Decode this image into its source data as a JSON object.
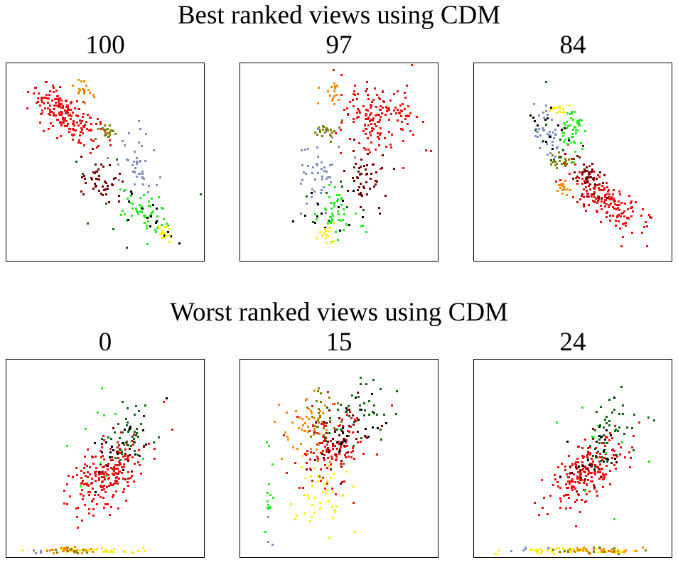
{
  "top_title": "Best ranked views using CDM",
  "bottom_title": "Worst ranked views using CDM",
  "palette": {
    "red": "#ee1111",
    "orange": "#ff8800",
    "olive": "#808000",
    "periwinkle": "#7f8fc0",
    "maroon": "#770000",
    "lime": "#22ee22",
    "darkgreen": "#116611",
    "black": "#000000",
    "yellow": "#ffee00"
  },
  "chart_data": [
    {
      "type": "scatter",
      "score": "100",
      "xlim": [
        0,
        1
      ],
      "ylim": [
        0,
        1
      ],
      "grid": false,
      "axes_ticks": false,
      "clusters": [
        {
          "color": "red",
          "n": 190,
          "cx": 0.28,
          "cy": 0.76,
          "sx": 0.09,
          "sy": 0.07,
          "rho": -0.6
        },
        {
          "color": "orange",
          "n": 18,
          "cx": 0.38,
          "cy": 0.88,
          "sx": 0.025,
          "sy": 0.025,
          "rho": -0.2
        },
        {
          "color": "olive",
          "n": 22,
          "cx": 0.5,
          "cy": 0.67,
          "sx": 0.022,
          "sy": 0.025,
          "rho": 0
        },
        {
          "color": "periwinkle",
          "n": 42,
          "cx": 0.66,
          "cy": 0.47,
          "sx": 0.05,
          "sy": 0.1,
          "rho": -0.2
        },
        {
          "color": "maroon",
          "n": 48,
          "cx": 0.47,
          "cy": 0.4,
          "sx": 0.06,
          "sy": 0.06,
          "rho": -0.5
        },
        {
          "color": "lime",
          "n": 52,
          "cx": 0.7,
          "cy": 0.24,
          "sx": 0.06,
          "sy": 0.06,
          "rho": -0.5
        },
        {
          "color": "darkgreen",
          "n": 8,
          "cx": 0.55,
          "cy": 0.38,
          "sx": 0.2,
          "sy": 0.2,
          "rho": -0.5
        },
        {
          "color": "black",
          "n": 16,
          "cx": 0.72,
          "cy": 0.22,
          "sx": 0.06,
          "sy": 0.06,
          "rho": -0.6
        },
        {
          "color": "yellow",
          "n": 16,
          "cx": 0.79,
          "cy": 0.13,
          "sx": 0.02,
          "sy": 0.03,
          "rho": -0.3
        }
      ]
    },
    {
      "type": "scatter",
      "score": "97",
      "xlim": [
        0,
        1
      ],
      "ylim": [
        0,
        1
      ],
      "grid": false,
      "axes_ticks": false,
      "clusters": [
        {
          "color": "red",
          "n": 160,
          "cx": 0.7,
          "cy": 0.72,
          "sx": 0.1,
          "sy": 0.1,
          "rho": 0
        },
        {
          "color": "orange",
          "n": 18,
          "cx": 0.45,
          "cy": 0.86,
          "sx": 0.025,
          "sy": 0.03,
          "rho": 0
        },
        {
          "color": "olive",
          "n": 22,
          "cx": 0.43,
          "cy": 0.67,
          "sx": 0.03,
          "sy": 0.025,
          "rho": 0
        },
        {
          "color": "periwinkle",
          "n": 45,
          "cx": 0.4,
          "cy": 0.45,
          "sx": 0.06,
          "sy": 0.1,
          "rho": 0
        },
        {
          "color": "maroon",
          "n": 50,
          "cx": 0.63,
          "cy": 0.43,
          "sx": 0.06,
          "sy": 0.07,
          "rho": 0
        },
        {
          "color": "lime",
          "n": 50,
          "cx": 0.49,
          "cy": 0.24,
          "sx": 0.05,
          "sy": 0.07,
          "rho": 0
        },
        {
          "color": "darkgreen",
          "n": 8,
          "cx": 0.4,
          "cy": 0.3,
          "sx": 0.12,
          "sy": 0.1,
          "rho": 0
        },
        {
          "color": "black",
          "n": 14,
          "cx": 0.38,
          "cy": 0.25,
          "sx": 0.1,
          "sy": 0.06,
          "rho": 0
        },
        {
          "color": "yellow",
          "n": 16,
          "cx": 0.42,
          "cy": 0.13,
          "sx": 0.03,
          "sy": 0.025,
          "rho": 0
        }
      ]
    },
    {
      "type": "scatter",
      "score": "84",
      "xlim": [
        0,
        1
      ],
      "ylim": [
        0,
        1
      ],
      "grid": false,
      "axes_ticks": false,
      "clusters": [
        {
          "color": "red",
          "n": 170,
          "cx": 0.68,
          "cy": 0.3,
          "sx": 0.11,
          "sy": 0.09,
          "rho": -0.75
        },
        {
          "color": "maroon",
          "n": 45,
          "cx": 0.57,
          "cy": 0.44,
          "sx": 0.05,
          "sy": 0.05,
          "rho": -0.4
        },
        {
          "color": "orange",
          "n": 18,
          "cx": 0.45,
          "cy": 0.37,
          "sx": 0.02,
          "sy": 0.03,
          "rho": -0.3
        },
        {
          "color": "olive",
          "n": 28,
          "cx": 0.43,
          "cy": 0.51,
          "sx": 0.03,
          "sy": 0.02,
          "rho": 0
        },
        {
          "color": "periwinkle",
          "n": 38,
          "cx": 0.36,
          "cy": 0.66,
          "sx": 0.04,
          "sy": 0.06,
          "rho": -0.4
        },
        {
          "color": "lime",
          "n": 45,
          "cx": 0.49,
          "cy": 0.67,
          "sx": 0.04,
          "sy": 0.06,
          "rho": -0.3
        },
        {
          "color": "black",
          "n": 14,
          "cx": 0.36,
          "cy": 0.68,
          "sx": 0.06,
          "sy": 0.06,
          "rho": -0.5
        },
        {
          "color": "darkgreen",
          "n": 10,
          "cx": 0.38,
          "cy": 0.7,
          "sx": 0.06,
          "sy": 0.08,
          "rho": -0.3
        },
        {
          "color": "yellow",
          "n": 14,
          "cx": 0.42,
          "cy": 0.78,
          "sx": 0.02,
          "sy": 0.015,
          "rho": 0
        }
      ]
    },
    {
      "type": "scatter",
      "score": "0",
      "xlim": [
        0,
        1
      ],
      "ylim": [
        0,
        1
      ],
      "grid": false,
      "axes_ticks": false,
      "clusters": [
        {
          "color": "red",
          "n": 210,
          "cx": 0.5,
          "cy": 0.42,
          "sx": 0.1,
          "sy": 0.1,
          "rho": 0.55
        },
        {
          "color": "darkgreen",
          "n": 45,
          "cx": 0.62,
          "cy": 0.63,
          "sx": 0.06,
          "sy": 0.08,
          "rho": 0.3
        },
        {
          "color": "black",
          "n": 20,
          "cx": 0.58,
          "cy": 0.57,
          "sx": 0.08,
          "sy": 0.1,
          "rho": 0.4
        },
        {
          "color": "maroon",
          "n": 15,
          "cx": 0.56,
          "cy": 0.5,
          "sx": 0.07,
          "sy": 0.07,
          "rho": 0.3
        },
        {
          "color": "lime",
          "n": 10,
          "cx": 0.55,
          "cy": 0.55,
          "sx": 0.12,
          "sy": 0.15,
          "rho": 0
        },
        {
          "color": "yellow",
          "n": 40,
          "cx": 0.4,
          "cy": 0.025,
          "sx": 0.14,
          "sy": 0.008,
          "rho": 0
        },
        {
          "color": "orange",
          "n": 25,
          "cx": 0.3,
          "cy": 0.025,
          "sx": 0.06,
          "sy": 0.008,
          "rho": 0
        },
        {
          "color": "olive",
          "n": 10,
          "cx": 0.32,
          "cy": 0.025,
          "sx": 0.05,
          "sy": 0.008,
          "rho": 0
        },
        {
          "color": "periwinkle",
          "n": 4,
          "cx": 0.14,
          "cy": 0.025,
          "sx": 0.02,
          "sy": 0.008,
          "rho": 0
        }
      ]
    },
    {
      "type": "scatter",
      "score": "15",
      "xlim": [
        0,
        1
      ],
      "ylim": [
        0,
        1
      ],
      "grid": false,
      "axes_ticks": false,
      "clusters": [
        {
          "color": "red",
          "n": 130,
          "cx": 0.45,
          "cy": 0.55,
          "sx": 0.09,
          "sy": 0.1,
          "rho": 0.3
        },
        {
          "color": "orange",
          "n": 50,
          "cx": 0.33,
          "cy": 0.68,
          "sx": 0.06,
          "sy": 0.1,
          "rho": 0
        },
        {
          "color": "olive",
          "n": 25,
          "cx": 0.4,
          "cy": 0.72,
          "sx": 0.06,
          "sy": 0.06,
          "rho": 0
        },
        {
          "color": "darkgreen",
          "n": 40,
          "cx": 0.57,
          "cy": 0.72,
          "sx": 0.09,
          "sy": 0.09,
          "rho": 0.3
        },
        {
          "color": "maroon",
          "n": 40,
          "cx": 0.5,
          "cy": 0.62,
          "sx": 0.07,
          "sy": 0.09,
          "rho": 0.3
        },
        {
          "color": "black",
          "n": 20,
          "cx": 0.58,
          "cy": 0.66,
          "sx": 0.08,
          "sy": 0.09,
          "rho": 0.3
        },
        {
          "color": "yellow",
          "n": 45,
          "cx": 0.4,
          "cy": 0.33,
          "sx": 0.09,
          "sy": 0.1,
          "rho": 0
        },
        {
          "color": "lime",
          "n": 14,
          "cx": 0.13,
          "cy": 0.35,
          "sx": 0.01,
          "sy": 0.18,
          "rho": 0
        },
        {
          "color": "periwinkle",
          "n": 3,
          "cx": 0.13,
          "cy": 0.15,
          "sx": 0.01,
          "sy": 0.08,
          "rho": 0
        }
      ]
    },
    {
      "type": "scatter",
      "score": "24",
      "xlim": [
        0,
        1
      ],
      "ylim": [
        0,
        1
      ],
      "grid": false,
      "axes_ticks": false,
      "clusters": [
        {
          "color": "red",
          "n": 200,
          "cx": 0.55,
          "cy": 0.42,
          "sx": 0.1,
          "sy": 0.1,
          "rho": 0.55
        },
        {
          "color": "darkgreen",
          "n": 45,
          "cx": 0.7,
          "cy": 0.65,
          "sx": 0.08,
          "sy": 0.09,
          "rho": 0.3
        },
        {
          "color": "black",
          "n": 25,
          "cx": 0.64,
          "cy": 0.56,
          "sx": 0.08,
          "sy": 0.08,
          "rho": 0.4
        },
        {
          "color": "maroon",
          "n": 15,
          "cx": 0.6,
          "cy": 0.5,
          "sx": 0.07,
          "sy": 0.07,
          "rho": 0.3
        },
        {
          "color": "lime",
          "n": 10,
          "cx": 0.6,
          "cy": 0.55,
          "sx": 0.12,
          "sy": 0.15,
          "rho": 0
        },
        {
          "color": "yellow",
          "n": 55,
          "cx": 0.5,
          "cy": 0.025,
          "sx": 0.17,
          "sy": 0.008,
          "rho": 0
        },
        {
          "color": "orange",
          "n": 30,
          "cx": 0.65,
          "cy": 0.025,
          "sx": 0.12,
          "sy": 0.008,
          "rho": 0
        },
        {
          "color": "olive",
          "n": 15,
          "cx": 0.6,
          "cy": 0.025,
          "sx": 0.12,
          "sy": 0.008,
          "rho": 0
        },
        {
          "color": "periwinkle",
          "n": 5,
          "cx": 0.2,
          "cy": 0.025,
          "sx": 0.06,
          "sy": 0.008,
          "rho": 0
        }
      ]
    }
  ]
}
